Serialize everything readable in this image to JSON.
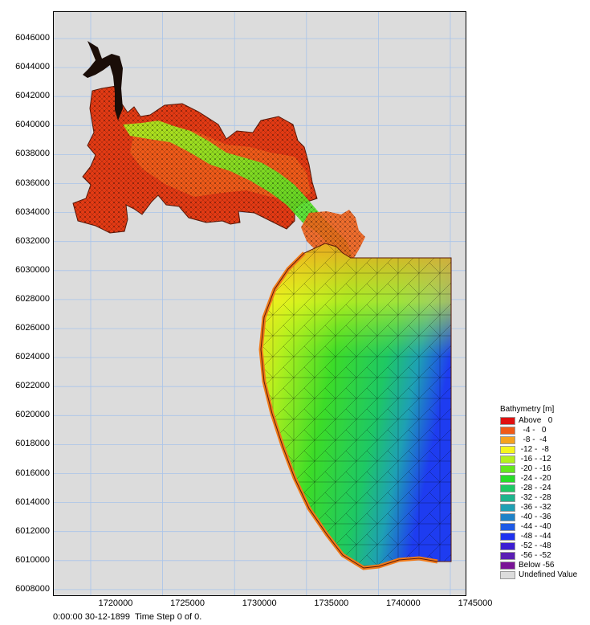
{
  "map": {
    "y_ticks": [
      "6046000",
      "6044000",
      "6042000",
      "6040000",
      "6038000",
      "6036000",
      "6034000",
      "6032000",
      "6030000",
      "6028000",
      "6026000",
      "6024000",
      "6022000",
      "6020000",
      "6018000",
      "6016000",
      "6014000",
      "6012000",
      "6010000",
      "6008000"
    ],
    "x_ticks": [
      "1720000",
      "1725000",
      "1730000",
      "1735000",
      "1740000",
      "1745000"
    ],
    "background_color": "#dcdcdc",
    "grid_color": "#a8c4ea"
  },
  "status": {
    "text": "0:00:00 30-12-1899  Time Step 0 of 0."
  },
  "legend": {
    "title": "Bathymetry [m]",
    "items": [
      {
        "label": "Above   0",
        "color": "#e01010"
      },
      {
        "label": "  -4 -   0",
        "color": "#f05a18"
      },
      {
        "label": "  -8 -  -4",
        "color": "#f5a21e"
      },
      {
        "label": " -12 -  -8",
        "color": "#f5f51e"
      },
      {
        "label": " -16 - -12",
        "color": "#b4f01e"
      },
      {
        "label": " -20 - -16",
        "color": "#64e61e"
      },
      {
        "label": " -24 - -20",
        "color": "#28dc28"
      },
      {
        "label": " -28 - -24",
        "color": "#1ec864"
      },
      {
        "label": " -32 - -28",
        "color": "#1eb48c"
      },
      {
        "label": " -36 - -32",
        "color": "#1ea0b4"
      },
      {
        "label": " -40 - -36",
        "color": "#1e82c8"
      },
      {
        "label": " -44 - -40",
        "color": "#1e5ae6"
      },
      {
        "label": " -48 - -44",
        "color": "#1e32f0"
      },
      {
        "label": " -52 - -48",
        "color": "#3c1ed2"
      },
      {
        "label": " -56 - -52",
        "color": "#5a1eb4"
      },
      {
        "label": "Below -56",
        "color": "#7a1496"
      },
      {
        "label": "Undefined Value",
        "color": "#dcdcdc"
      }
    ]
  }
}
